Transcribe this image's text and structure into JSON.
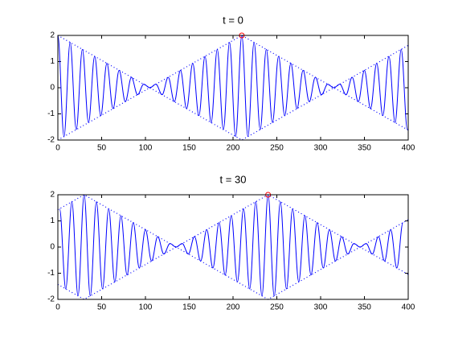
{
  "chart_data": [
    {
      "type": "line",
      "title": "t = 0",
      "xlim": [
        0,
        400
      ],
      "ylim": [
        -2,
        2
      ],
      "xticks": [
        0,
        50,
        100,
        150,
        200,
        250,
        300,
        350,
        400
      ],
      "yticks": [
        -2,
        -1,
        0,
        1,
        2
      ],
      "series": [
        {
          "color": "#0000ff",
          "style": "solid",
          "x": [
            0,
            7,
            14,
            21,
            28,
            35,
            42,
            49,
            56,
            63,
            70,
            77,
            84,
            91,
            98,
            105,
            112,
            119,
            126,
            133,
            140,
            147,
            154,
            161,
            168,
            175,
            182,
            189,
            196,
            203,
            210,
            217,
            224,
            231,
            238,
            245,
            252,
            259,
            266,
            273,
            280,
            287,
            294,
            301,
            308,
            315,
            322,
            329,
            336,
            343,
            350,
            357,
            364,
            371,
            378,
            385,
            392,
            399
          ],
          "values": [
            2,
            -1.867,
            1.733,
            -1.6,
            1.467,
            -1.333,
            1.2,
            -1.067,
            0.933,
            -0.8,
            0.667,
            -0.533,
            0.4,
            -0.267,
            0.133,
            0,
            0.133,
            -0.267,
            0.4,
            -0.533,
            0.667,
            -0.8,
            0.933,
            -1.067,
            1.2,
            -1.333,
            1.467,
            -1.6,
            1.733,
            -1.867,
            2,
            -1.867,
            1.733,
            -1.6,
            1.467,
            -1.333,
            1.2,
            -1.067,
            0.933,
            -0.8,
            0.667,
            -0.533,
            0.4,
            -0.267,
            0.133,
            0,
            0.133,
            -0.267,
            0.4,
            -0.533,
            0.667,
            -0.8,
            0.933,
            -1.067,
            1.2,
            -1.333,
            1.467,
            -1.6
          ]
        },
        {
          "color": "#0000ff",
          "style": "dotted",
          "x": [
            0,
            105,
            210,
            315,
            400
          ],
          "values": [
            2,
            0,
            2,
            0,
            1.619
          ]
        },
        {
          "color": "#0000ff",
          "style": "dotted",
          "x": [
            0,
            105,
            210,
            315,
            400
          ],
          "values": [
            -2,
            0,
            -2,
            0,
            -1.619
          ]
        }
      ],
      "markers": [
        {
          "x": 210,
          "y": 2,
          "color": "#ff0000"
        }
      ]
    },
    {
      "type": "line",
      "title": "t = 30",
      "xlim": [
        0,
        400
      ],
      "ylim": [
        -2,
        2
      ],
      "xticks": [
        0,
        50,
        100,
        150,
        200,
        250,
        300,
        350,
        400
      ],
      "yticks": [
        -2,
        -1,
        0,
        1,
        2
      ],
      "series": [
        {
          "color": "#0000ff",
          "style": "solid",
          "x": [
            2,
            9,
            16,
            23,
            30,
            37,
            44,
            51,
            58,
            65,
            72,
            79,
            86,
            93,
            100,
            107,
            114,
            121,
            128,
            135,
            142,
            149,
            156,
            163,
            170,
            177,
            184,
            191,
            198,
            205,
            212,
            219,
            226,
            233,
            240,
            247,
            254,
            261,
            268,
            275,
            282,
            289,
            296,
            303,
            310,
            317,
            324,
            331,
            338,
            345,
            352,
            359,
            366,
            373,
            380,
            387,
            394
          ],
          "values": [
            1.467,
            -1.6,
            1.733,
            -1.867,
            2,
            -1.867,
            1.733,
            -1.6,
            1.467,
            -1.333,
            1.2,
            -1.067,
            0.933,
            -0.8,
            0.667,
            -0.533,
            0.4,
            -0.267,
            0.133,
            0,
            0.133,
            -0.267,
            0.4,
            -0.533,
            0.667,
            -0.8,
            0.933,
            -1.067,
            1.2,
            -1.333,
            1.467,
            -1.6,
            1.733,
            -1.867,
            2,
            -1.867,
            1.733,
            -1.6,
            1.467,
            -1.333,
            1.2,
            -1.067,
            0.933,
            -0.8,
            0.667,
            -0.533,
            0.4,
            -0.267,
            0.133,
            0,
            0.133,
            -0.267,
            0.4,
            -0.533,
            0.667,
            -0.8,
            0.933
          ]
        },
        {
          "color": "#0000ff",
          "style": "dotted",
          "x": [
            0,
            30,
            135,
            240,
            345,
            400
          ],
          "values": [
            1.429,
            2,
            0,
            2,
            0,
            1.048
          ]
        },
        {
          "color": "#0000ff",
          "style": "dotted",
          "x": [
            0,
            30,
            135,
            240,
            345,
            400
          ],
          "values": [
            -1.429,
            -2,
            0,
            -2,
            0,
            -1.048
          ]
        }
      ],
      "markers": [
        {
          "x": 240,
          "y": 2,
          "color": "#ff0000"
        }
      ]
    }
  ]
}
